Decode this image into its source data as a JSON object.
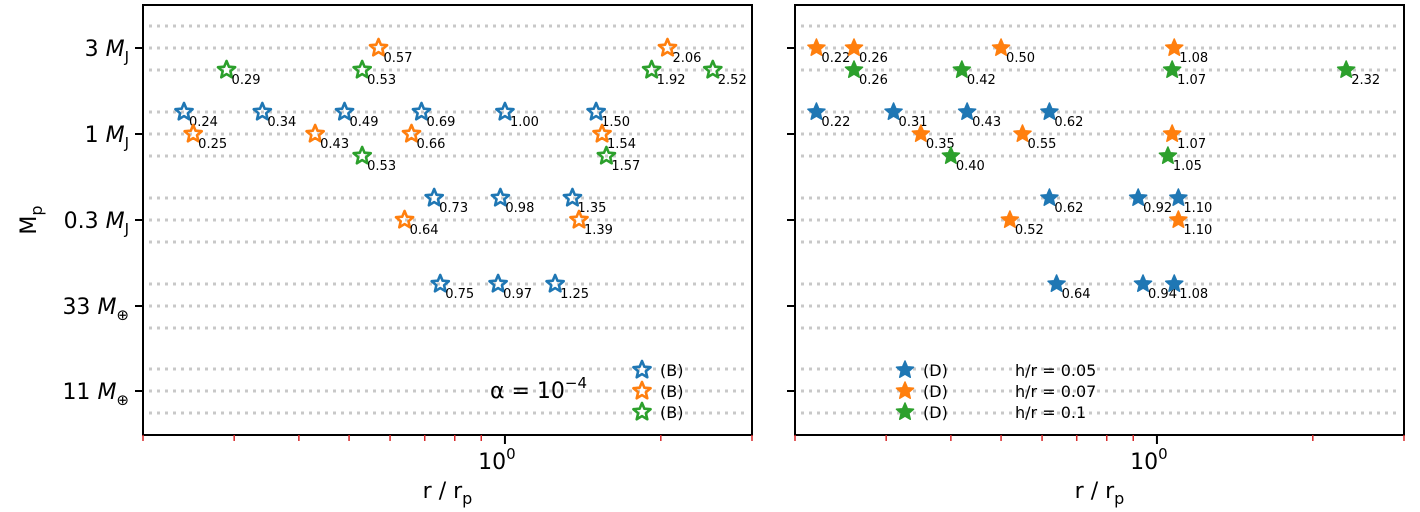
{
  "chart_data": [
    {
      "type": "scatter",
      "panel": "left",
      "xlabel": "r / r_p",
      "ylabel": "M_p",
      "xscale": "log",
      "xlim": [
        0.2,
        3.0
      ],
      "x_tick_labels": [
        {
          "value": 1,
          "label": "10^0"
        }
      ],
      "y_tick_labels": [
        "3 M_J",
        "1 M_J",
        "0.3 M_J",
        "33 M_⊕",
        "11 M_⊕"
      ],
      "annotation": "α = 10^−4",
      "marker": "hollow-star",
      "legend": {
        "placement": "lower-right",
        "entries": [
          "(B)",
          "(B)",
          "(B)"
        ]
      },
      "series": [
        {
          "color": "#1f77b4",
          "points": [
            {
              "x": 0.24,
              "mass": "1 M_J",
              "label": "0.24"
            },
            {
              "x": 0.34,
              "mass": "1 M_J",
              "label": "0.34"
            },
            {
              "x": 0.49,
              "mass": "1 M_J",
              "label": "0.49"
            },
            {
              "x": 0.69,
              "mass": "1 M_J",
              "label": "0.69"
            },
            {
              "x": 1.0,
              "mass": "1 M_J",
              "label": "1.00"
            },
            {
              "x": 1.5,
              "mass": "1 M_J",
              "label": "1.50"
            },
            {
              "x": 0.73,
              "mass": "0.3 M_J",
              "label": "0.73"
            },
            {
              "x": 0.98,
              "mass": "0.3 M_J",
              "label": "0.98"
            },
            {
              "x": 1.35,
              "mass": "0.3 M_J",
              "label": "1.35"
            },
            {
              "x": 0.75,
              "mass": "33 M_⊕",
              "label": "0.75"
            },
            {
              "x": 0.97,
              "mass": "33 M_⊕",
              "label": "0.97"
            },
            {
              "x": 1.25,
              "mass": "33 M_⊕",
              "label": "1.25"
            }
          ]
        },
        {
          "color": "#ff7f0e",
          "points": [
            {
              "x": 0.57,
              "mass": "3 M_J",
              "label": "0.57"
            },
            {
              "x": 2.06,
              "mass": "3 M_J",
              "label": "2.06"
            },
            {
              "x": 0.25,
              "mass": "1 M_J",
              "label": "0.25"
            },
            {
              "x": 0.43,
              "mass": "1 M_J",
              "label": "0.43"
            },
            {
              "x": 0.66,
              "mass": "1 M_J",
              "label": "0.66"
            },
            {
              "x": 1.54,
              "mass": "1 M_J",
              "label": "1.54"
            },
            {
              "x": 0.64,
              "mass": "0.3 M_J",
              "label": "0.64"
            },
            {
              "x": 1.39,
              "mass": "0.3 M_J",
              "label": "1.39"
            }
          ]
        },
        {
          "color": "#2ca02c",
          "points": [
            {
              "x": 0.29,
              "mass": "3 M_J",
              "label": "0.29"
            },
            {
              "x": 0.53,
              "mass": "3 M_J",
              "label": "0.53"
            },
            {
              "x": 1.92,
              "mass": "3 M_J",
              "label": "1.92"
            },
            {
              "x": 2.52,
              "mass": "3 M_J",
              "label": "2.52"
            },
            {
              "x": 0.53,
              "mass": "1 M_J",
              "label": "0.53"
            },
            {
              "x": 1.57,
              "mass": "1 M_J",
              "label": "1.57"
            }
          ]
        }
      ]
    },
    {
      "type": "scatter",
      "panel": "right",
      "xlabel": "r / r_p",
      "xscale": "log",
      "xlim": [
        0.2,
        3.0
      ],
      "x_tick_labels": [
        {
          "value": 1,
          "label": "10^0"
        }
      ],
      "marker": "filled-star",
      "legend": {
        "placement": "lower-center",
        "entries": [
          "(D)",
          "(D)",
          "(D)"
        ],
        "series_names": [
          "h/r = 0.05",
          "h/r = 0.07",
          "h/r = 0.1"
        ]
      },
      "series": [
        {
          "color": "#1f77b4",
          "points": [
            {
              "x": 0.22,
              "mass": "1 M_J",
              "label": "0.22"
            },
            {
              "x": 0.31,
              "mass": "1 M_J",
              "label": "0.31"
            },
            {
              "x": 0.43,
              "mass": "1 M_J",
              "label": "0.43"
            },
            {
              "x": 0.62,
              "mass": "1 M_J",
              "label": "0.62"
            },
            {
              "x": 0.62,
              "mass": "0.3 M_J",
              "label": "0.62"
            },
            {
              "x": 0.92,
              "mass": "0.3 M_J",
              "label": "0.92"
            },
            {
              "x": 1.1,
              "mass": "0.3 M_J",
              "label": "1.10"
            },
            {
              "x": 0.64,
              "mass": "33 M_⊕",
              "label": "0.64"
            },
            {
              "x": 0.94,
              "mass": "33 M_⊕",
              "label": "0.94"
            },
            {
              "x": 1.08,
              "mass": "33 M_⊕",
              "label": "1.08"
            }
          ]
        },
        {
          "color": "#ff7f0e",
          "points": [
            {
              "x": 0.22,
              "mass": "3 M_J",
              "label": "0.22"
            },
            {
              "x": 0.26,
              "mass": "3 M_J",
              "label": "0.26"
            },
            {
              "x": 0.5,
              "mass": "3 M_J",
              "label": "0.50"
            },
            {
              "x": 1.08,
              "mass": "3 M_J",
              "label": "1.08"
            },
            {
              "x": 0.35,
              "mass": "1 M_J",
              "label": "0.35"
            },
            {
              "x": 0.55,
              "mass": "1 M_J",
              "label": "0.55"
            },
            {
              "x": 1.07,
              "mass": "1 M_J",
              "label": "1.07"
            },
            {
              "x": 0.52,
              "mass": "0.3 M_J",
              "label": "0.52"
            },
            {
              "x": 1.1,
              "mass": "0.3 M_J",
              "label": "1.10"
            }
          ]
        },
        {
          "color": "#2ca02c",
          "points": [
            {
              "x": 0.26,
              "mass": "3 M_J",
              "label": "0.26"
            },
            {
              "x": 0.42,
              "mass": "3 M_J",
              "label": "0.42"
            },
            {
              "x": 1.07,
              "mass": "3 M_J",
              "label": "1.07"
            },
            {
              "x": 2.32,
              "mass": "3 M_J",
              "label": "2.32"
            },
            {
              "x": 0.4,
              "mass": "1 M_J",
              "label": "0.40"
            },
            {
              "x": 1.05,
              "mass": "1 M_J",
              "label": "1.05"
            }
          ]
        }
      ]
    }
  ]
}
